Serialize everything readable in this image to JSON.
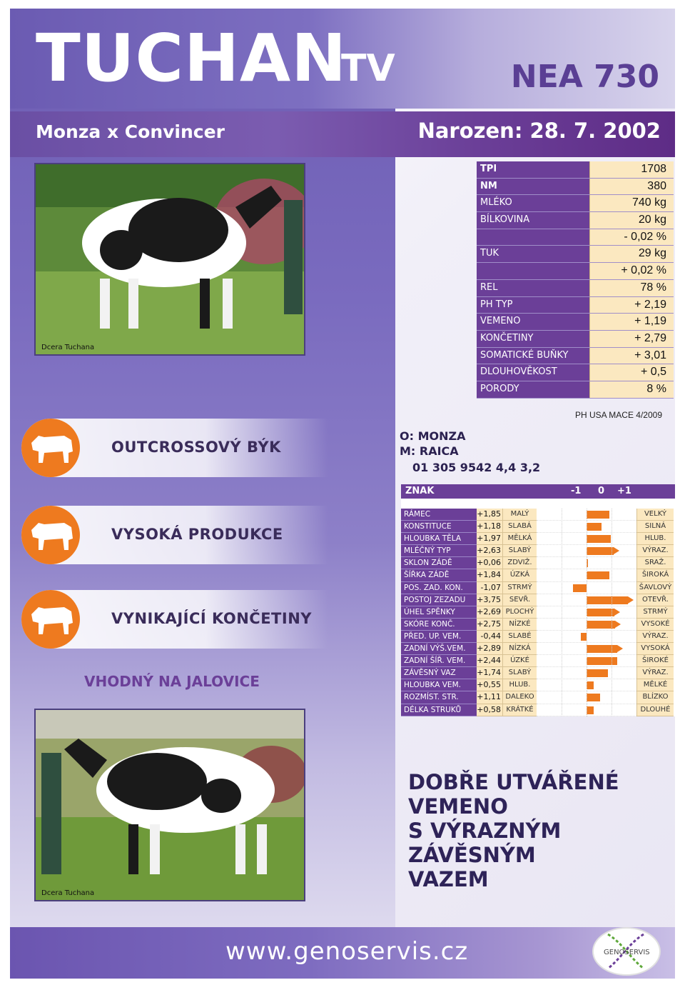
{
  "header": {
    "title": "TUCHAN",
    "title_suffix": "TV",
    "code": "NEA 730",
    "pedigree": "Monza x Convincer",
    "born": "Narozen: 28. 7. 2002"
  },
  "photos": {
    "top_label": "Dcera Tuchana",
    "bottom_label": "Dcera Tuchana"
  },
  "stats": {
    "rows": [
      {
        "label": "TPI",
        "value": "1708",
        "bold": true
      },
      {
        "label": "NM",
        "value": "380",
        "bold": true
      },
      {
        "label": "MLÉKO",
        "value": "740 kg"
      },
      {
        "label": "BÍLKOVINA",
        "value": "20 kg"
      },
      {
        "label": "",
        "value": "- 0,02 %"
      },
      {
        "label": "TUK",
        "value": "29 kg"
      },
      {
        "label": "",
        "value": "+ 0,02 %"
      },
      {
        "label": "REL",
        "value": "78 %"
      },
      {
        "label": "PH TYP",
        "value": "+ 2,19"
      },
      {
        "label": "VEMENO",
        "value": "+ 1,19"
      },
      {
        "label": "KONČETINY",
        "value": "+ 2,79"
      },
      {
        "label": "SOMATICKÉ BUŇKY",
        "value": "+ 3,01"
      },
      {
        "label": "DLOUHOVĚKOST",
        "value": "+ 0,5"
      },
      {
        "label": "PORODY",
        "value": "8 %"
      }
    ],
    "source": "PH USA MACE 4/2009"
  },
  "features": [
    {
      "label": "OUTCROSSOVÝ BÝK",
      "icon": "bull-icon"
    },
    {
      "label": "VYSOKÁ PRODUKCE",
      "icon": "bull-icon"
    },
    {
      "label": "VYNIKAJÍCÍ KONČETINY",
      "icon": "bull-icon"
    }
  ],
  "heifer_note": "VHODNÝ NA JALOVICE",
  "parents": {
    "sire": "O: MONZA",
    "dam": "M: RAICA",
    "registration": "01 305 9542 4,4 3,2"
  },
  "type_chart": {
    "header": {
      "trait": "ZNAK",
      "minus": "-1",
      "zero": "0",
      "plus": "+1"
    },
    "scale": {
      "min": -4,
      "max": 4
    },
    "rows": [
      {
        "name": "RÁMEC",
        "value": "+1,85",
        "num": 1.85,
        "low": "MALÝ",
        "high": "VELKÝ"
      },
      {
        "name": "KONSTITUCE",
        "value": "+1,18",
        "num": 1.18,
        "low": "SLABÁ",
        "high": "SILNÁ"
      },
      {
        "name": "HLOUBKA TĚLA",
        "value": "+1,97",
        "num": 1.97,
        "low": "MĚLKÁ",
        "high": "HLUB."
      },
      {
        "name": "MLÉČNÝ TYP",
        "value": "+2,63",
        "num": 2.63,
        "low": "SLABÝ",
        "high": "VÝRAZ."
      },
      {
        "name": "SKLON ZÁDĚ",
        "value": "+0,06",
        "num": 0.06,
        "low": "ZDVIŽ.",
        "high": "SRAŽ."
      },
      {
        "name": "ŠÍŘKA ZÁDĚ",
        "value": "+1,84",
        "num": 1.84,
        "low": "ÚZKÁ",
        "high": "ŠIROKÁ"
      },
      {
        "name": "POS. ZAD. KON.",
        "value": "-1,07",
        "num": -1.07,
        "low": "STRMÝ",
        "high": "ŠAVLOVÝ"
      },
      {
        "name": "POSTOJ ZEZADU",
        "value": "+3,75",
        "num": 3.75,
        "low": "SEVŘ.",
        "high": "OTEVŘ."
      },
      {
        "name": "ÚHEL SPĚNKY",
        "value": "+2,69",
        "num": 2.69,
        "low": "PLOCHÝ",
        "high": "STRMÝ"
      },
      {
        "name": "SKÓRE KONČ.",
        "value": "+2,75",
        "num": 2.75,
        "low": "NÍZKÉ",
        "high": "VYSOKÉ"
      },
      {
        "name": "PŘED. UP. VEM.",
        "value": "-0,44",
        "num": -0.44,
        "low": "SLABÉ",
        "high": "VÝRAZ."
      },
      {
        "name": "ZADNÍ VÝŠ.VEM.",
        "value": "+2,89",
        "num": 2.89,
        "low": "NÍZKÁ",
        "high": "VYSOKÁ"
      },
      {
        "name": "ZADNÍ ŠÍŘ. VEM.",
        "value": "+2,44",
        "num": 2.44,
        "low": "ÚZKÉ",
        "high": "ŠIROKÉ"
      },
      {
        "name": "ZÁVĚSNÝ VAZ",
        "value": "+1,74",
        "num": 1.74,
        "low": "SLABÝ",
        "high": "VÝRAZ."
      },
      {
        "name": "HLOUBKA VEM.",
        "value": "+0,55",
        "num": 0.55,
        "low": "HLUB.",
        "high": "MĚLKÉ"
      },
      {
        "name": "ROZMÍST. STR.",
        "value": "+1,11",
        "num": 1.11,
        "low": "DALEKO",
        "high": "BLÍZKO"
      },
      {
        "name": "DÉLKA STRUKŮ",
        "value": "+0,58",
        "num": 0.58,
        "low": "KRÁTKÉ",
        "high": "DLOUHÉ"
      }
    ]
  },
  "headline": [
    "DOBŘE UTVÁŘENÉ",
    "VEMENO",
    "S VÝRAZNÝM ZÁVĚSNÝM",
    "VAZEM"
  ],
  "footer": {
    "url": "www.genoservis.cz",
    "logo_text": "GENOSERVIS"
  },
  "colors": {
    "purple": "#6b3f98",
    "orange": "#ee7a1f",
    "cream": "#fbe8c0"
  }
}
